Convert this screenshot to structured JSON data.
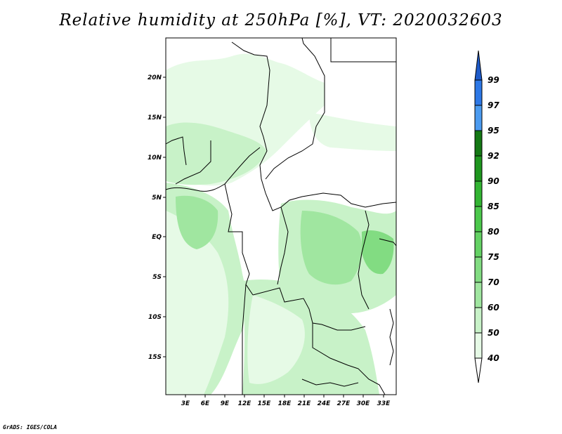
{
  "title": "Relative humidity at 250hPa [%], VT: 2020032603",
  "credit": "GrADS: IGES/COLA",
  "map": {
    "lat_labels": [
      "20N",
      "15N",
      "10N",
      "5N",
      "EQ",
      "5S",
      "10S",
      "15S"
    ],
    "lon_labels": [
      "3E",
      "6E",
      "9E",
      "12E",
      "15E",
      "18E",
      "21E",
      "24E",
      "27E",
      "30E",
      "33E"
    ]
  },
  "colorbar": {
    "labels": [
      "40",
      "50",
      "60",
      "70",
      "75",
      "80",
      "85",
      "90",
      "92",
      "95",
      "97",
      "99"
    ],
    "colors": [
      "#ffffff",
      "#e6fae6",
      "#c8f2c8",
      "#a0e6a0",
      "#82dc82",
      "#64d264",
      "#4bc84b",
      "#32b432",
      "#1e961e",
      "#147814",
      "#4b9bf0",
      "#2d78e6",
      "#1e5ac8"
    ]
  }
}
